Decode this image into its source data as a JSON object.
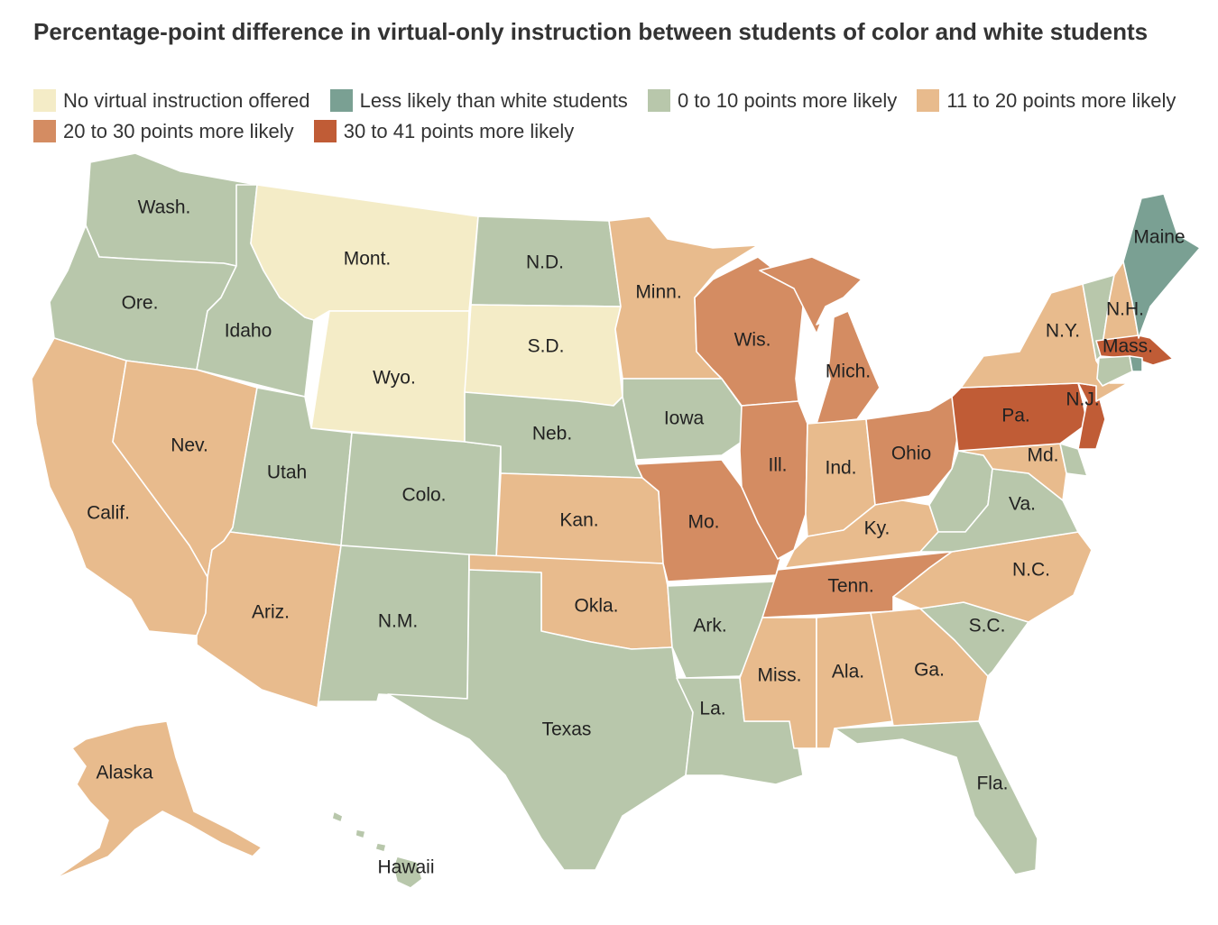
{
  "title": "Percentage-point difference in virtual-only instruction between students of color and white students",
  "colors": {
    "none": "#f4ecc7",
    "less": "#7aa093",
    "c0_10": "#b8c7ab",
    "c11_20": "#e8bb8d",
    "c20_30": "#d48c62",
    "c30_41": "#c05c36",
    "lake": "#ffffff"
  },
  "legend": [
    {
      "label": "No virtual instruction offered",
      "color_key": "none"
    },
    {
      "label": "Less likely than white students",
      "color_key": "less"
    },
    {
      "label": "0 to 10 points more likely",
      "color_key": "c0_10"
    },
    {
      "label": "11 to 20 points more likely",
      "color_key": "c11_20"
    },
    {
      "label": "20 to 30 points more likely",
      "color_key": "c20_30"
    },
    {
      "label": "30 to 41 points more likely",
      "color_key": "c30_41"
    }
  ],
  "states": [
    {
      "id": "wa",
      "label": "Wash.",
      "category": "c0_10"
    },
    {
      "id": "or",
      "label": "Ore.",
      "category": "c0_10"
    },
    {
      "id": "ca",
      "label": "Calif.",
      "category": "c11_20"
    },
    {
      "id": "id",
      "label": "Idaho",
      "category": "c0_10"
    },
    {
      "id": "nv",
      "label": "Nev.",
      "category": "c11_20"
    },
    {
      "id": "mt",
      "label": "Mont.",
      "category": "none"
    },
    {
      "id": "wy",
      "label": "Wyo.",
      "category": "none"
    },
    {
      "id": "ut",
      "label": "Utah",
      "category": "c0_10"
    },
    {
      "id": "az",
      "label": "Ariz.",
      "category": "c11_20"
    },
    {
      "id": "co",
      "label": "Colo.",
      "category": "c0_10"
    },
    {
      "id": "nm",
      "label": "N.M.",
      "category": "c0_10"
    },
    {
      "id": "nd",
      "label": "N.D.",
      "category": "c0_10"
    },
    {
      "id": "sd",
      "label": "S.D.",
      "category": "none"
    },
    {
      "id": "ne",
      "label": "Neb.",
      "category": "c0_10"
    },
    {
      "id": "ks",
      "label": "Kan.",
      "category": "c11_20"
    },
    {
      "id": "ok",
      "label": "Okla.",
      "category": "c11_20"
    },
    {
      "id": "tx",
      "label": "Texas",
      "category": "c0_10"
    },
    {
      "id": "mn",
      "label": "Minn.",
      "category": "c11_20"
    },
    {
      "id": "ia",
      "label": "Iowa",
      "category": "c0_10"
    },
    {
      "id": "mo",
      "label": "Mo.",
      "category": "c20_30"
    },
    {
      "id": "ar",
      "label": "Ark.",
      "category": "c0_10"
    },
    {
      "id": "la",
      "label": "La.",
      "category": "c0_10"
    },
    {
      "id": "wi",
      "label": "Wis.",
      "category": "c20_30"
    },
    {
      "id": "il",
      "label": "Ill.",
      "category": "c20_30"
    },
    {
      "id": "mi",
      "label": "Mich.",
      "category": "c20_30"
    },
    {
      "id": "in",
      "label": "Ind.",
      "category": "c11_20"
    },
    {
      "id": "oh",
      "label": "Ohio",
      "category": "c20_30"
    },
    {
      "id": "ky",
      "label": "Ky.",
      "category": "c11_20"
    },
    {
      "id": "tn",
      "label": "Tenn.",
      "category": "c20_30"
    },
    {
      "id": "ms",
      "label": "Miss.",
      "category": "c11_20"
    },
    {
      "id": "al",
      "label": "Ala.",
      "category": "c11_20"
    },
    {
      "id": "ga",
      "label": "Ga.",
      "category": "c11_20"
    },
    {
      "id": "fl",
      "label": "Fla.",
      "category": "c0_10"
    },
    {
      "id": "sc",
      "label": "S.C.",
      "category": "c0_10"
    },
    {
      "id": "nc",
      "label": "N.C.",
      "category": "c11_20"
    },
    {
      "id": "va",
      "label": "Va.",
      "category": "c0_10"
    },
    {
      "id": "wv",
      "label": "",
      "category": "c0_10"
    },
    {
      "id": "md",
      "label": "Md.",
      "category": "c11_20"
    },
    {
      "id": "de",
      "label": "",
      "category": "c0_10"
    },
    {
      "id": "pa",
      "label": "Pa.",
      "category": "c30_41"
    },
    {
      "id": "nj",
      "label": "N.J.",
      "category": "c30_41"
    },
    {
      "id": "ny",
      "label": "N.Y.",
      "category": "c11_20"
    },
    {
      "id": "ct",
      "label": "",
      "category": "c0_10"
    },
    {
      "id": "ri",
      "label": "",
      "category": "less"
    },
    {
      "id": "ma",
      "label": "Mass.",
      "category": "c30_41"
    },
    {
      "id": "vt",
      "label": "",
      "category": "c0_10"
    },
    {
      "id": "nh",
      "label": "N.H.",
      "category": "c11_20"
    },
    {
      "id": "me",
      "label": "Maine",
      "category": "less"
    },
    {
      "id": "ak",
      "label": "Alaska",
      "category": "c11_20"
    },
    {
      "id": "hi",
      "label": "Hawaii",
      "category": "c0_10"
    }
  ]
}
